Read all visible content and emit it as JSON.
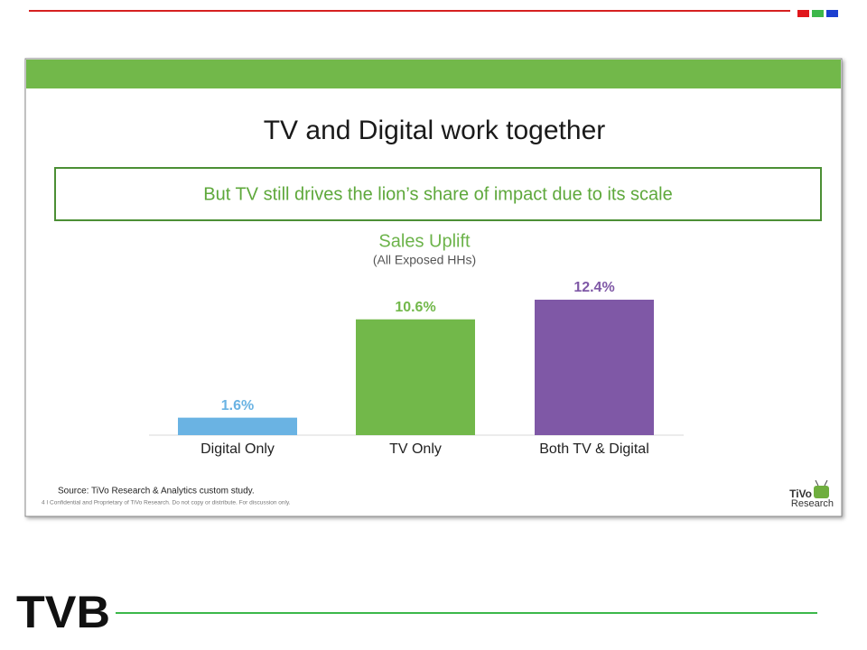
{
  "slide": {
    "headline": "TV and Digital work together",
    "callout": "But TV still drives the lion’s share of impact due to its scale",
    "source": "Source: TiVo Research & Analytics custom study.",
    "footer": "4  I  Confidential and Proprietary of TiVo Research. Do not copy or distribute.  For discussion only.",
    "partner_logo": [
      "TiVo",
      "Research"
    ],
    "brand_logo": "TVB"
  },
  "chart_data": {
    "type": "bar",
    "title": "Sales Uplift",
    "subtitle": "(All Exposed HHs)",
    "categories": [
      "Digital Only",
      "TV Only",
      "Both TV & Digital"
    ],
    "values": [
      1.6,
      10.6,
      12.4
    ],
    "value_labels": [
      "1.6%",
      "10.6%",
      "12.4%"
    ],
    "colors": [
      "#6ab3e3",
      "#72b84a",
      "#7f58a6"
    ]
  }
}
